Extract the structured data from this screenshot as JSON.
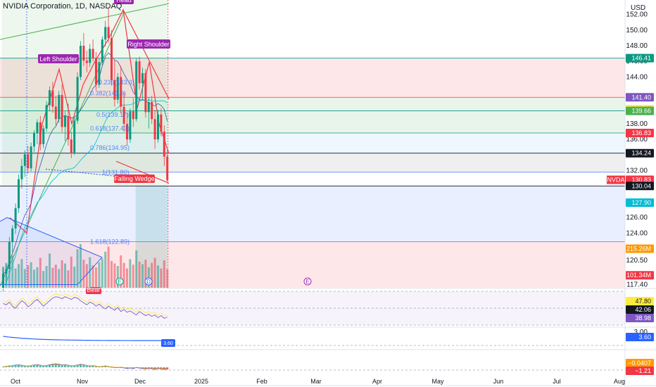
{
  "header": {
    "title": "NVIDIA Corporation, 1D, NASDAQ",
    "currency": "USD"
  },
  "chart_data": {
    "type": "candlestick",
    "symbol": "NVDA",
    "price_axis": {
      "ticks": [
        152.0,
        150.0,
        148.0,
        146.0,
        144.0,
        140.0,
        138.0,
        136.0,
        132.0,
        126.0,
        124.0,
        120.5,
        118.5,
        117.4
      ],
      "ylim": [
        117.0,
        153.5
      ]
    },
    "time_axis": {
      "ticks": [
        "Oct",
        "Nov",
        "Dec",
        "2025",
        "Feb",
        "Mar",
        "Apr",
        "May",
        "Jun",
        "Jul",
        "Aug"
      ]
    },
    "candles": [
      {
        "o": 117.0,
        "h": 119.5,
        "l": 116.5,
        "c": 118.8
      },
      {
        "o": 118.8,
        "h": 120.0,
        "l": 117.8,
        "c": 119.4
      },
      {
        "o": 119.4,
        "h": 123.5,
        "l": 119.0,
        "c": 122.9
      },
      {
        "o": 122.9,
        "h": 125.0,
        "l": 121.5,
        "c": 124.6
      },
      {
        "o": 124.6,
        "h": 127.8,
        "l": 123.9,
        "c": 127.2
      },
      {
        "o": 127.2,
        "h": 131.5,
        "l": 126.6,
        "c": 130.9
      },
      {
        "o": 130.9,
        "h": 133.5,
        "l": 129.7,
        "c": 132.6
      },
      {
        "o": 132.6,
        "h": 134.6,
        "l": 131.2,
        "c": 134.1
      },
      {
        "o": 134.1,
        "h": 135.2,
        "l": 131.6,
        "c": 132.3
      },
      {
        "o": 132.3,
        "h": 135.6,
        "l": 131.9,
        "c": 135.1
      },
      {
        "o": 135.1,
        "h": 137.2,
        "l": 134.4,
        "c": 136.8
      },
      {
        "o": 136.8,
        "h": 138.6,
        "l": 135.4,
        "c": 138.2
      },
      {
        "o": 138.2,
        "h": 139.0,
        "l": 134.6,
        "c": 135.4
      },
      {
        "o": 135.4,
        "h": 137.8,
        "l": 134.9,
        "c": 137.4
      },
      {
        "o": 137.4,
        "h": 140.9,
        "l": 137.0,
        "c": 140.4
      },
      {
        "o": 140.4,
        "h": 142.8,
        "l": 139.6,
        "c": 142.3
      },
      {
        "o": 142.3,
        "h": 143.4,
        "l": 139.4,
        "c": 140.2
      },
      {
        "o": 140.2,
        "h": 141.6,
        "l": 137.8,
        "c": 138.6
      },
      {
        "o": 138.6,
        "h": 142.2,
        "l": 138.1,
        "c": 141.7
      },
      {
        "o": 141.7,
        "h": 143.0,
        "l": 136.9,
        "c": 137.6
      },
      {
        "o": 137.6,
        "h": 139.6,
        "l": 135.8,
        "c": 139.0
      },
      {
        "o": 139.0,
        "h": 140.6,
        "l": 135.2,
        "c": 136.0
      },
      {
        "o": 136.0,
        "h": 137.0,
        "l": 133.6,
        "c": 134.2
      },
      {
        "o": 134.2,
        "h": 138.8,
        "l": 134.0,
        "c": 138.4
      },
      {
        "o": 138.4,
        "h": 144.6,
        "l": 138.0,
        "c": 144.0
      },
      {
        "o": 144.0,
        "h": 148.6,
        "l": 143.6,
        "c": 148.0
      },
      {
        "o": 148.0,
        "h": 149.6,
        "l": 145.4,
        "c": 146.1
      },
      {
        "o": 146.1,
        "h": 147.4,
        "l": 144.6,
        "c": 145.8
      },
      {
        "o": 145.8,
        "h": 148.2,
        "l": 145.3,
        "c": 147.6
      },
      {
        "o": 147.6,
        "h": 148.8,
        "l": 146.0,
        "c": 146.4
      },
      {
        "o": 146.4,
        "h": 147.2,
        "l": 142.3,
        "c": 143.0
      },
      {
        "o": 143.0,
        "h": 146.4,
        "l": 142.6,
        "c": 145.9
      },
      {
        "o": 145.9,
        "h": 149.2,
        "l": 145.4,
        "c": 148.8
      },
      {
        "o": 148.8,
        "h": 151.2,
        "l": 147.9,
        "c": 150.4
      },
      {
        "o": 150.4,
        "h": 152.9,
        "l": 148.4,
        "c": 149.0
      },
      {
        "o": 149.0,
        "h": 150.0,
        "l": 142.9,
        "c": 143.6
      },
      {
        "o": 143.6,
        "h": 146.2,
        "l": 140.2,
        "c": 141.1
      },
      {
        "o": 141.1,
        "h": 144.5,
        "l": 140.6,
        "c": 144.0
      },
      {
        "o": 144.0,
        "h": 145.4,
        "l": 139.4,
        "c": 140.2
      },
      {
        "o": 140.2,
        "h": 142.0,
        "l": 137.0,
        "c": 138.0
      },
      {
        "o": 138.0,
        "h": 139.4,
        "l": 135.2,
        "c": 136.0
      },
      {
        "o": 136.0,
        "h": 140.0,
        "l": 135.6,
        "c": 139.6
      },
      {
        "o": 139.6,
        "h": 141.3,
        "l": 137.6,
        "c": 138.6
      },
      {
        "o": 138.6,
        "h": 146.4,
        "l": 138.3,
        "c": 146.0
      },
      {
        "o": 146.0,
        "h": 146.6,
        "l": 142.4,
        "c": 143.2
      },
      {
        "o": 143.2,
        "h": 145.2,
        "l": 141.1,
        "c": 144.5
      },
      {
        "o": 144.5,
        "h": 145.0,
        "l": 138.8,
        "c": 139.5
      },
      {
        "o": 139.5,
        "h": 141.4,
        "l": 137.4,
        "c": 140.8
      },
      {
        "o": 140.8,
        "h": 141.6,
        "l": 138.0,
        "c": 138.6
      },
      {
        "o": 138.6,
        "h": 139.8,
        "l": 134.8,
        "c": 136.0
      },
      {
        "o": 136.0,
        "h": 139.8,
        "l": 135.6,
        "c": 139.2
      },
      {
        "o": 139.2,
        "h": 140.0,
        "l": 136.4,
        "c": 137.0
      },
      {
        "o": 137.0,
        "h": 137.8,
        "l": 132.6,
        "c": 133.8
      },
      {
        "o": 133.8,
        "h": 134.6,
        "l": 130.6,
        "c": 130.8
      }
    ],
    "volume": [
      34,
      40,
      28,
      52,
      31,
      38,
      46,
      30,
      36,
      41,
      29,
      33,
      48,
      27,
      35,
      55,
      32,
      37,
      30,
      44,
      39,
      28,
      50,
      34,
      62,
      70,
      45,
      38,
      49,
      36,
      33,
      41,
      47,
      58,
      66,
      43,
      39,
      35,
      52,
      40,
      31,
      46,
      37,
      60,
      42,
      38,
      45,
      33,
      40,
      48,
      36,
      31,
      44,
      30
    ],
    "levels": {
      "fib": [
        {
          "label": "0.236(143.3)",
          "value": 143.3
        },
        {
          "label": "0.382(141.9)",
          "value": 141.9
        },
        {
          "label": "0.5(139.17)",
          "value": 139.17
        },
        {
          "label": "0.618(137.43)",
          "value": 137.43
        },
        {
          "label": "0.786(134.95)",
          "value": 134.95
        },
        {
          "label": "1(131.80)",
          "value": 131.8
        },
        {
          "label": "1.618(122.89)",
          "value": 122.89
        }
      ]
    },
    "pattern_labels": {
      "head": "Head",
      "left_shoulder": "Left Shoulder",
      "right_shoulder": "Right Shoulder",
      "falling_wedge": "Falling Wedge",
      "bear": "Bear"
    },
    "event_markers": [
      {
        "label": "E",
        "color": "#089981"
      },
      {
        "label": "D",
        "color": "#2962ff"
      },
      {
        "label": "E",
        "color": "#9c27b0"
      }
    ],
    "price_chips": [
      {
        "label": "146.41",
        "value": 146.41,
        "color": "#089981"
      },
      {
        "label": "141.40",
        "value": 141.4,
        "color": "#7e57c2"
      },
      {
        "label": "139.87",
        "value": 139.87,
        "color": "#ffeb3b"
      },
      {
        "label": "139.66",
        "value": 139.66,
        "color": "#4caf50"
      },
      {
        "label": "136.83",
        "value": 136.83,
        "color": "#f23645"
      },
      {
        "label": "134.24",
        "value": 134.24,
        "color": "#131722"
      },
      {
        "label": "130.83",
        "value": 130.83,
        "color": "#f23645",
        "tag": "NVDA"
      },
      {
        "label": "130.04",
        "value": 130.04,
        "color": "#131722"
      },
      {
        "label": "127.90",
        "value": 127.9,
        "color": "#00bcd4"
      },
      {
        "label": "215.26M",
        "value": 122.0,
        "color": "#ff9800"
      },
      {
        "label": "101.34M",
        "value": 118.6,
        "color": "#f23645"
      }
    ],
    "rsi": {
      "ticks": [
        "47.80"
      ],
      "chips": [
        {
          "label": "47.80",
          "color": "#ffeb3b"
        },
        {
          "label": "42.06",
          "color": "#131722"
        },
        {
          "label": "38.98",
          "color": "#7e57c2"
        }
      ],
      "values": [
        62,
        60,
        64,
        58,
        55,
        61,
        66,
        63,
        57,
        60,
        65,
        68,
        63,
        58,
        62,
        66,
        70,
        72,
        71,
        69,
        72,
        70,
        68,
        71,
        70,
        66,
        63,
        60,
        64,
        62,
        58,
        61,
        57,
        54,
        58,
        55,
        52,
        56,
        50,
        53,
        49,
        51,
        48,
        45,
        50,
        47,
        44,
        46,
        43,
        45,
        41,
        44,
        40,
        42
      ]
    },
    "indicator3": {
      "chip": {
        "label": "3.60",
        "color": "#2962ff"
      },
      "axis_label": "3.00",
      "values": [
        8.0,
        7.6,
        7.2,
        6.9,
        6.6,
        6.3,
        6.0,
        5.8,
        5.6,
        5.4,
        5.2,
        5.05,
        4.9,
        4.8,
        4.7,
        4.6,
        4.5,
        4.42,
        4.35,
        4.28,
        4.2,
        4.15,
        4.1,
        4.05,
        4.0,
        3.96,
        3.92,
        3.88,
        3.85,
        3.82,
        3.8,
        3.78,
        3.75,
        3.73,
        3.71,
        3.69,
        3.68,
        3.67,
        3.66,
        3.65,
        3.64,
        3.63,
        3.62,
        3.62,
        3.61,
        3.61,
        3.6,
        3.6,
        3.6,
        3.6,
        3.6,
        3.6,
        3.6,
        3.6
      ]
    },
    "macd": {
      "chips": [
        {
          "label": "−0.0407",
          "color": "#ff9800"
        },
        {
          "label": "−1.21",
          "color": "#f23645"
        }
      ],
      "hist": [
        0.3,
        0.5,
        0.8,
        1.0,
        1.3,
        1.5,
        1.2,
        0.9,
        0.7,
        1.0,
        1.4,
        1.6,
        1.2,
        0.8,
        1.1,
        1.5,
        1.9,
        2.1,
        1.8,
        1.4,
        1.6,
        1.2,
        0.8,
        1.0,
        1.4,
        1.8,
        1.5,
        1.1,
        0.8,
        1.0,
        0.6,
        0.3,
        0.5,
        0.8,
        0.4,
        0.1,
        -0.2,
        -0.4,
        -0.1,
        -0.5,
        -0.8,
        -0.6,
        -0.9,
        -0.3,
        -0.6,
        -0.9,
        -1.1,
        -0.8,
        -1.0,
        -1.3,
        -0.9,
        -1.1,
        -1.3,
        -1.21
      ]
    }
  }
}
